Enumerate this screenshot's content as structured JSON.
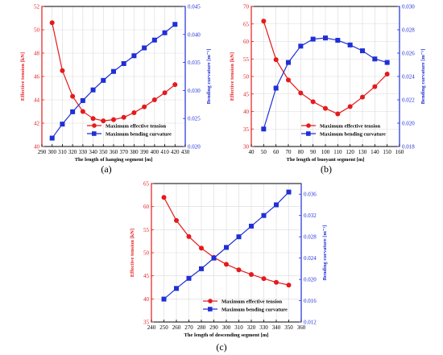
{
  "colors": {
    "tension": "#e41a1c",
    "curvature": "#1f2fd6",
    "grid": "#d9d9d9",
    "axis": "#000000"
  },
  "chart_data": [
    {
      "id": "a",
      "type": "line",
      "caption": "(a)",
      "xlabel": "The length of hanging segment [m]",
      "ylabel_left": "Effective tension [kN]",
      "ylabel_right": "Bending curvature [m⁻¹]",
      "xlim": [
        290,
        430
      ],
      "x_ticks": [
        290,
        300,
        310,
        320,
        330,
        340,
        350,
        360,
        370,
        380,
        390,
        400,
        410,
        420,
        430
      ],
      "ylim_left": [
        40,
        52
      ],
      "y_ticks_left": [
        40,
        42,
        44,
        46,
        48,
        50,
        52
      ],
      "ylim_right": [
        0.02,
        0.045
      ],
      "y_ticks_right": [
        "0.020",
        "0.025",
        "0.030",
        "0.035",
        "0.040",
        "0.045"
      ],
      "grid": true,
      "legend_position": "bottom-right",
      "x": [
        300,
        310,
        320,
        330,
        340,
        350,
        360,
        370,
        380,
        390,
        400,
        410,
        420
      ],
      "series": [
        {
          "name": "Maximum effective tension",
          "axis": "left",
          "marker": "circle",
          "values": [
            50.6,
            46.5,
            44.3,
            43.0,
            42.4,
            42.2,
            42.3,
            42.5,
            42.9,
            43.4,
            44.0,
            44.6,
            45.3
          ]
        },
        {
          "name": "Maximum bending curvature",
          "axis": "right",
          "marker": "square",
          "values": [
            0.0215,
            0.024,
            0.0262,
            0.0282,
            0.0301,
            0.0318,
            0.0334,
            0.0348,
            0.0362,
            0.0376,
            0.039,
            0.0403,
            0.0418
          ]
        }
      ]
    },
    {
      "id": "b",
      "type": "line",
      "caption": "(b)",
      "xlabel": "The length of buoyant segment [m]",
      "ylabel_left": "Effective tension [kN]",
      "ylabel_right": "Bending curvature [m⁻¹]",
      "xlim": [
        40,
        160
      ],
      "x_ticks": [
        40,
        50,
        60,
        70,
        80,
        90,
        100,
        110,
        120,
        130,
        140,
        150,
        160
      ],
      "ylim_left": [
        30,
        70
      ],
      "y_ticks_left": [
        30,
        35,
        40,
        45,
        50,
        55,
        60,
        65,
        70
      ],
      "ylim_right": [
        0.018,
        0.03
      ],
      "y_ticks_right": [
        "0.018",
        "0.020",
        "0.022",
        "0.024",
        "0.026",
        "0.028",
        "0.030"
      ],
      "grid": true,
      "legend_position": "bottom-right",
      "x": [
        50,
        60,
        70,
        80,
        90,
        100,
        110,
        120,
        130,
        140,
        150
      ],
      "series": [
        {
          "name": "Maximum effective tension",
          "axis": "left",
          "marker": "circle",
          "values": [
            65.8,
            54.8,
            49.0,
            45.3,
            42.8,
            40.9,
            39.3,
            41.4,
            44.1,
            47.1,
            50.7
          ]
        },
        {
          "name": "Maximum bending curvature",
          "axis": "right",
          "marker": "square",
          "values": [
            0.0195,
            0.023,
            0.0252,
            0.0266,
            0.0272,
            0.0273,
            0.0271,
            0.0267,
            0.0262,
            0.0255,
            0.0252
          ]
        }
      ]
    },
    {
      "id": "c",
      "type": "line",
      "caption": "(c)",
      "xlabel": "The length of descending segment [m]",
      "ylabel_left": "Effective tension [kN]",
      "ylabel_right": "Bending curvature [m⁻¹]",
      "xlim": [
        240,
        360
      ],
      "x_ticks": [
        240,
        250,
        260,
        270,
        280,
        290,
        300,
        310,
        320,
        330,
        340,
        350,
        360
      ],
      "ylim_left": [
        35,
        65
      ],
      "y_ticks_left": [
        35,
        40,
        45,
        50,
        55,
        60,
        65
      ],
      "ylim_right": [
        0.012,
        0.038
      ],
      "y_ticks_right": [
        "0.012",
        "0.016",
        "0.020",
        "0.024",
        "0.028",
        "0.032",
        "0.036"
      ],
      "grid": true,
      "legend_position": "bottom-right",
      "x": [
        250,
        260,
        270,
        280,
        290,
        300,
        310,
        320,
        330,
        340,
        350
      ],
      "series": [
        {
          "name": "Maximum effective tension",
          "axis": "left",
          "marker": "circle",
          "values": [
            62.0,
            57.0,
            53.5,
            51.0,
            49.0,
            47.5,
            46.3,
            45.3,
            44.4,
            43.6,
            43.0
          ]
        },
        {
          "name": "Maximum bending curvature",
          "axis": "right",
          "marker": "square",
          "values": [
            0.0163,
            0.0183,
            0.0202,
            0.022,
            0.024,
            0.026,
            0.028,
            0.03,
            0.032,
            0.034,
            0.0364
          ]
        }
      ]
    }
  ]
}
